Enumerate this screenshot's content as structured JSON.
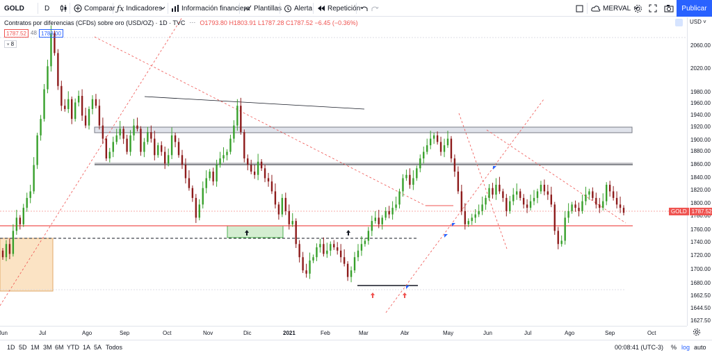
{
  "toolbar": {
    "symbol": "GOLD",
    "interval": "D",
    "compare": "Comparar",
    "indicators": "Indicadores",
    "financial": "Información financiera",
    "templates": "Plantillas",
    "alert": "Alerta",
    "replay": "Repetición",
    "layout_name": "MERVAL",
    "publish": "Publicar"
  },
  "legend": {
    "title": "Contratos por diferencias (CFDs) sobre oro (USD/OZ) · 1D · TVC",
    "ohlc": "O1793.80  H1803.91  L1787.28  C1787.52  −6.45 (−0.36%)",
    "bid": "1787.52",
    "spread": "48",
    "ask": "1788.00",
    "collapse": "8"
  },
  "price_axis": {
    "currency": "USD",
    "ticks": [
      "2060.00",
      "2020.00",
      "1980.00",
      "1960.00",
      "1940.00",
      "1920.00",
      "1900.00",
      "1880.00",
      "1860.00",
      "1840.00",
      "1820.00",
      "1800.00",
      "1780.00",
      "1760.00",
      "1740.00",
      "1720.00",
      "1700.00",
      "1680.00",
      "1662.50",
      "1644.50",
      "1627.50"
    ],
    "current_label": "GOLD",
    "current_price": "1787.52"
  },
  "time_axis": {
    "labels": [
      "Jun",
      "Jul",
      "Ago",
      "Sep",
      "Oct",
      "Nov",
      "Dic",
      "2021",
      "Feb",
      "Mar",
      "Abr",
      "May",
      "Jun",
      "Jul",
      "Ago",
      "Sep",
      "Oct"
    ]
  },
  "bottombar": {
    "ranges": [
      "1D",
      "5D",
      "1M",
      "3M",
      "6M",
      "YTD",
      "1A",
      "5A",
      "Todos"
    ],
    "clock": "00:08:41 (UTC-3)",
    "percent": "%",
    "log": "log",
    "auto": "auto"
  },
  "colors": {
    "up": "#26a69a",
    "down": "#ef5350",
    "accent": "#2962ff",
    "body_up": "#37a02b",
    "body_down": "#8d1b1b"
  },
  "chart_data": {
    "type": "candlestick",
    "symbol": "GOLD",
    "interval": "1D",
    "ylim": [
      1620,
      2080
    ],
    "last_close": 1787.52,
    "horizontal_levels": [
      1910,
      1920,
      1862,
      1766,
      1748,
      1676
    ],
    "closes": [
      1720,
      1740,
      1725,
      1760,
      1780,
      1770,
      1795,
      1810,
      1820,
      1860,
      1905,
      1930,
      1975,
      2010,
      2060,
      2030,
      1980,
      1950,
      1945,
      1960,
      1930,
      1955,
      1965,
      1935,
      1920,
      1945,
      1960,
      1950,
      1920,
      1900,
      1870,
      1880,
      1895,
      1905,
      1915,
      1900,
      1880,
      1905,
      1920,
      1915,
      1880,
      1895,
      1910,
      1900,
      1875,
      1890,
      1880,
      1862,
      1875,
      1905,
      1895,
      1875,
      1860,
      1840,
      1825,
      1810,
      1780,
      1800,
      1825,
      1840,
      1850,
      1835,
      1860,
      1870,
      1875,
      1880,
      1900,
      1920,
      1950,
      1910,
      1870,
      1860,
      1850,
      1845,
      1865,
      1855,
      1840,
      1835,
      1820,
      1800,
      1785,
      1810,
      1790,
      1770,
      1775,
      1740,
      1720,
      1700,
      1695,
      1715,
      1720,
      1735,
      1740,
      1725,
      1730,
      1740,
      1735,
      1730,
      1720,
      1710,
      1690,
      1700,
      1720,
      1730,
      1740,
      1745,
      1760,
      1775,
      1780,
      1770,
      1780,
      1790,
      1785,
      1795,
      1800,
      1820,
      1840,
      1845,
      1830,
      1840,
      1855,
      1870,
      1880,
      1890,
      1900,
      1905,
      1895,
      1880,
      1890,
      1900,
      1870,
      1850,
      1820,
      1790,
      1770,
      1775,
      1780,
      1785,
      1790,
      1800,
      1810,
      1825,
      1815,
      1830,
      1820,
      1810,
      1790,
      1805,
      1815,
      1820,
      1810,
      1800,
      1795,
      1805,
      1810,
      1820,
      1830,
      1820,
      1815,
      1800,
      1760,
      1740,
      1745,
      1780,
      1790,
      1800,
      1795,
      1790,
      1805,
      1815,
      1820,
      1810,
      1800,
      1795,
      1805,
      1830,
      1820,
      1810,
      1800,
      1795,
      1787.52
    ]
  }
}
